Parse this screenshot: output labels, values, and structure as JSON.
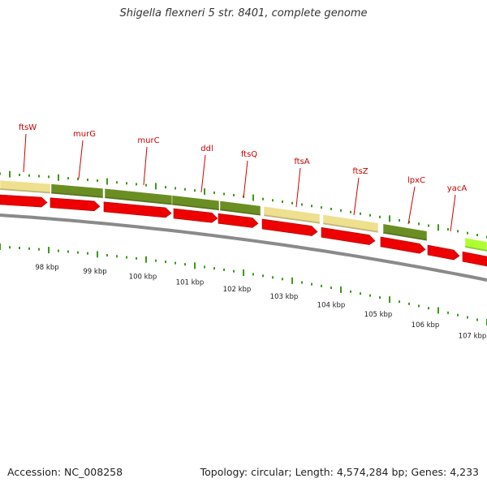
{
  "title": "Shigella flexneri 5 str. 8401, complete genome",
  "footer": {
    "accession": "Accession: NC_008258",
    "summary": "Topology: circular; Length: 4,574,284 bp; Genes: 4,233"
  },
  "colors": {
    "cds_forward": "#ee0000",
    "gene_dark": "#6b8e23",
    "gene_light": "#eee08f",
    "gene_bright": "#adff2f",
    "backbone": "#8a8a8a",
    "tick": "#3a9a18",
    "gene_label": "#cc0000"
  },
  "gene_labels": [
    "ftsW",
    "murG",
    "murC",
    "ddl",
    "ftsQ",
    "ftsA",
    "ftsZ",
    "lpxC",
    "yacA"
  ],
  "kbp_labels": [
    "98 kbp",
    "99 kbp",
    "100 kbp",
    "101 kbp",
    "102 kbp",
    "103 kbp",
    "104 kbp",
    "105 kbp",
    "106 kbp",
    "107 kbp"
  ]
}
